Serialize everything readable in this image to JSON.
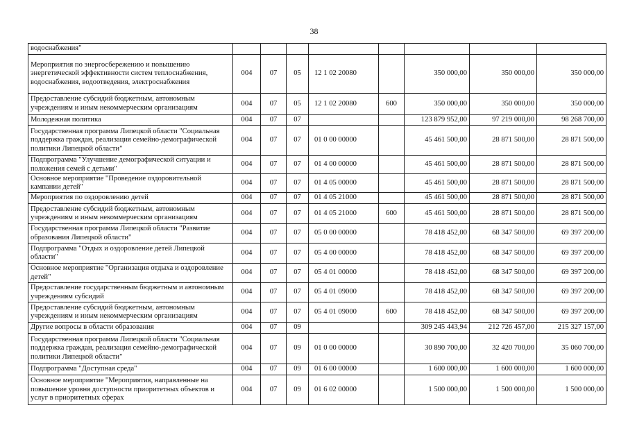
{
  "page_number": "38",
  "rows": [
    {
      "name": "водоснабжения\"",
      "ved": "",
      "rz": "",
      "pr": "",
      "csr": "",
      "vr": "",
      "y1": "",
      "y2": "",
      "y3": ""
    },
    {
      "name": "Мероприятия по энергосбережению и повышению энергетической эффективности систем теплоснабжения, водоснабжения, водоотведения, электроснабжения",
      "ved": "004",
      "rz": "07",
      "pr": "05",
      "csr": "12 1 02 20080",
      "vr": "",
      "y1": "350 000,00",
      "y2": "350 000,00",
      "y3": "350 000,00"
    },
    {
      "name": "Предоставление субсидий  бюджетным, автономным учреждениям и иным некоммерческим организациям",
      "ved": "004",
      "rz": "07",
      "pr": "05",
      "csr": "12 1 02 20080",
      "vr": "600",
      "y1": "350 000,00",
      "y2": "350 000,00",
      "y3": "350 000,00"
    },
    {
      "name": "Молодежная политика",
      "ved": "004",
      "rz": "07",
      "pr": "07",
      "csr": "",
      "vr": "",
      "y1": "123 879 952,00",
      "y2": "97 219 000,00",
      "y3": "98 268 700,00"
    },
    {
      "name": "Государственная программа Липецкой области \"Социальная поддержка граждан, реализация семейно-демографической политики Липецкой области\"",
      "ved": "004",
      "rz": "07",
      "pr": "07",
      "csr": "01 0 00 00000",
      "vr": "",
      "y1": "45 461 500,00",
      "y2": "28 871 500,00",
      "y3": "28 871 500,00"
    },
    {
      "name": "Подпрограмма \"Улучшение демографической ситуации и положения семей с детьми\"",
      "ved": "004",
      "rz": "07",
      "pr": "07",
      "csr": "01 4 00 00000",
      "vr": "",
      "y1": "45 461 500,00",
      "y2": "28 871 500,00",
      "y3": "28 871 500,00"
    },
    {
      "name": "Основное мероприятие \"Проведение оздоровительной кампании детей\"",
      "ved": "004",
      "rz": "07",
      "pr": "07",
      "csr": "01 4 05 00000",
      "vr": "",
      "y1": "45 461 500,00",
      "y2": "28 871 500,00",
      "y3": "28 871 500,00"
    },
    {
      "name": "Мероприятия по оздоровлению детей",
      "ved": "004",
      "rz": "07",
      "pr": "07",
      "csr": "01 4 05 21000",
      "vr": "",
      "y1": "45 461 500,00",
      "y2": "28 871 500,00",
      "y3": "28 871 500,00"
    },
    {
      "name": "Предоставление субсидий  бюджетным, автономным учреждениям и иным некоммерческим организациям",
      "ved": "004",
      "rz": "07",
      "pr": "07",
      "csr": "01 4 05 21000",
      "vr": "600",
      "y1": "45 461 500,00",
      "y2": "28 871 500,00",
      "y3": "28 871 500,00"
    },
    {
      "name": "Государственная программа Липецкой области \"Развитие образования Липецкой области\"",
      "ved": "004",
      "rz": "07",
      "pr": "07",
      "csr": "05 0 00 00000",
      "vr": "",
      "y1": "78 418 452,00",
      "y2": "68 347 500,00",
      "y3": "69 397 200,00"
    },
    {
      "name": "Подпрограмма \"Отдых и оздоровление детей Липецкой области\"",
      "ved": "004",
      "rz": "07",
      "pr": "07",
      "csr": "05 4 00 00000",
      "vr": "",
      "y1": "78 418 452,00",
      "y2": "68 347 500,00",
      "y3": "69 397 200,00"
    },
    {
      "name": "Основное мероприятие \"Организация отдыха и оздоровление детей\"",
      "ved": "004",
      "rz": "07",
      "pr": "07",
      "csr": "05 4 01 00000",
      "vr": "",
      "y1": "78 418 452,00",
      "y2": "68 347 500,00",
      "y3": "69 397 200,00"
    },
    {
      "name": "Предоставление государственным бюджетным и автономным учреждениям субсидий",
      "ved": "004",
      "rz": "07",
      "pr": "07",
      "csr": "05 4 01 09000",
      "vr": "",
      "y1": "78 418 452,00",
      "y2": "68 347 500,00",
      "y3": "69 397 200,00"
    },
    {
      "name": "Предоставление субсидий  бюджетным, автономным учреждениям и иным некоммерческим организациям",
      "ved": "004",
      "rz": "07",
      "pr": "07",
      "csr": "05 4 01 09000",
      "vr": "600",
      "y1": "78 418 452,00",
      "y2": "68 347 500,00",
      "y3": "69 397 200,00"
    },
    {
      "name": "Другие вопросы в области образования",
      "ved": "004",
      "rz": "07",
      "pr": "09",
      "csr": "",
      "vr": "",
      "y1": "309 245 443,94",
      "y2": "212 726 457,00",
      "y3": "215 327 157,00"
    },
    {
      "name": "Государственная программа Липецкой области \"Социальная поддержка граждан, реализация семейно-демографической политики Липецкой области\"",
      "ved": "004",
      "rz": "07",
      "pr": "09",
      "csr": "01 0 00 00000",
      "vr": "",
      "y1": "30 890 700,00",
      "y2": "32 420 700,00",
      "y3": "35 060 700,00"
    },
    {
      "name": "Подпрограмма \"Доступная среда\"",
      "ved": "004",
      "rz": "07",
      "pr": "09",
      "csr": "01 6 00 00000",
      "vr": "",
      "y1": "1 600 000,00",
      "y2": "1 600 000,00",
      "y3": "1 600 000,00"
    },
    {
      "name": "Основное мероприятие \"Мероприятия, направленные на повышение уровня доступности приоритетных объектов и услуг в приоритетных сферах",
      "ved": "004",
      "rz": "07",
      "pr": "09",
      "csr": "01 6 02 00000",
      "vr": "",
      "y1": "1 500 000,00",
      "y2": "1 500 000,00",
      "y3": "1 500 000,00"
    }
  ]
}
